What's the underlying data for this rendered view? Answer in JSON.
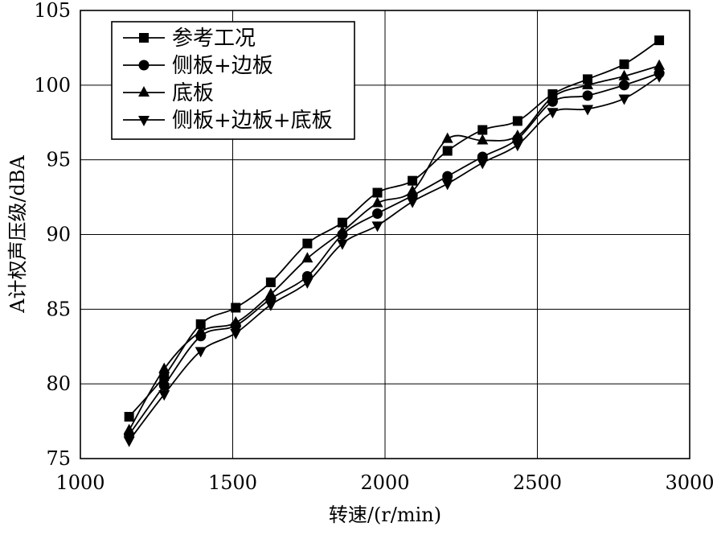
{
  "chart_data": {
    "type": "line",
    "title": "",
    "xlabel": "转速/(r/min)",
    "ylabel": "A计权声压级/dBA",
    "xlim": [
      1000,
      3000
    ],
    "ylim": [
      75,
      105
    ],
    "x_ticks": [
      1000,
      1500,
      2000,
      2500,
      3000
    ],
    "y_ticks": [
      75,
      80,
      85,
      90,
      95,
      100,
      105
    ],
    "grid": true,
    "legend_position": "top-left",
    "x": [
      1160,
      1275,
      1395,
      1510,
      1625,
      1745,
      1860,
      1975,
      2090,
      2205,
      2320,
      2435,
      2550,
      2665,
      2785,
      2900
    ],
    "series": [
      {
        "name": "参考工况",
        "marker": "square",
        "values": [
          77.8,
          80.5,
          84.0,
          85.1,
          86.8,
          89.4,
          90.8,
          92.8,
          93.6,
          95.6,
          97.0,
          97.6,
          99.4,
          100.4,
          101.4,
          103.0
        ]
      },
      {
        "name": "侧板+边板",
        "marker": "circle",
        "values": [
          76.6,
          79.9,
          83.2,
          83.9,
          85.7,
          87.2,
          90.0,
          91.4,
          92.6,
          93.9,
          95.2,
          96.4,
          98.9,
          99.3,
          100.0,
          100.8
        ]
      },
      {
        "name": "底板",
        "marker": "triangle-up",
        "values": [
          76.9,
          81.0,
          83.5,
          84.1,
          86.0,
          88.4,
          90.2,
          92.1,
          92.9,
          96.4,
          96.3,
          96.6,
          99.2,
          100.0,
          100.6,
          101.3
        ]
      },
      {
        "name": "侧板+边板+底板",
        "marker": "triangle-down",
        "values": [
          76.2,
          79.3,
          82.2,
          83.4,
          85.3,
          86.8,
          89.4,
          90.6,
          92.2,
          93.4,
          94.8,
          96.0,
          98.2,
          98.4,
          99.1,
          100.6
        ]
      }
    ]
  }
}
